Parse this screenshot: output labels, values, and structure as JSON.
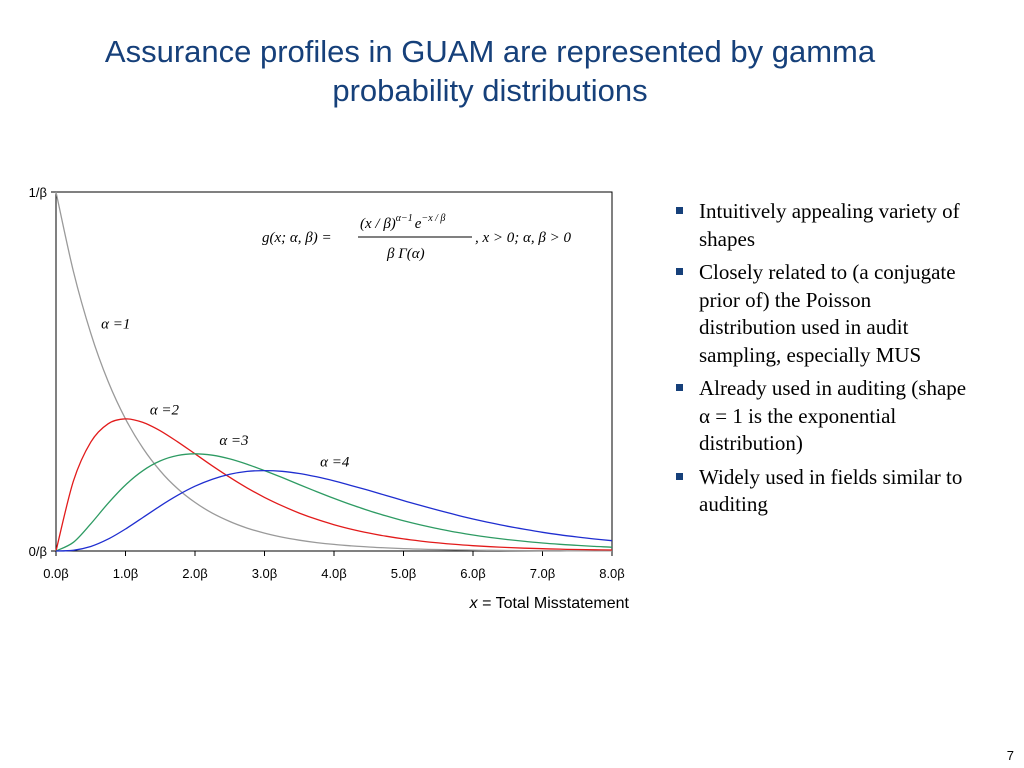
{
  "slide": {
    "title_lines": [
      "Assurance profiles in GUAM are represented by gamma",
      "probability distributions"
    ],
    "bullets": [
      "Intuitively appealing variety of shapes",
      "Closely related to (a conjugate prior of) the Poisson distribution used in audit sampling, especially MUS",
      "Already used in auditing (shape α = 1 is the exponential distribution)",
      "Widely used in fields similar to auditing"
    ],
    "page_number": "7"
  },
  "colors": {
    "title": "#16407a",
    "bullet": "#16407a",
    "alpha1": "#9a9a9a",
    "alpha2": "#e21b1b",
    "alpha3": "#2e9b63",
    "alpha4": "#1f2ed0"
  },
  "chart_data": {
    "type": "line",
    "title": "",
    "xlabel_italic": "x",
    "xlabel_rest": " = Total Misstatement",
    "ylabel": "",
    "xlim": [
      0,
      8
    ],
    "ylim": [
      0,
      1
    ],
    "x_tick_values": [
      0,
      1,
      2,
      3,
      4,
      5,
      6,
      7,
      8
    ],
    "x_tick_labels": [
      "0.0β",
      "1.0β",
      "2.0β",
      "3.0β",
      "4.0β",
      "5.0β",
      "6.0β",
      "7.0β",
      "8.0β"
    ],
    "y_tick_values": [
      0,
      1
    ],
    "y_tick_labels": [
      "0/β",
      "1/β"
    ],
    "grid": false,
    "legend": "none",
    "formula": "g(x; α, β) = (x/β)^(α−1) e^(−x/β) / (β Γ(α)), x > 0; α, β > 0",
    "formula_parts": {
      "lhs": "g(x; α, β) =",
      "numerator_base": "(x / β)",
      "numerator_exp1": "α−1",
      "numerator_e": "e",
      "numerator_exp2": "−x / β",
      "denominator": "β Γ(α)",
      "condition": ", x > 0; α, β > 0"
    },
    "x": [
      0,
      0.25,
      0.5,
      0.75,
      1,
      1.25,
      1.5,
      1.75,
      2,
      2.25,
      2.5,
      2.75,
      3,
      3.25,
      3.5,
      3.75,
      4,
      4.25,
      4.5,
      4.75,
      5,
      5.25,
      5.5,
      5.75,
      6,
      6.25,
      6.5,
      6.75,
      7,
      7.25,
      7.5,
      7.75,
      8
    ],
    "series": [
      {
        "name": "α =1",
        "values": [
          1.0,
          0.7788,
          0.6065,
          0.4724,
          0.3679,
          0.2865,
          0.2231,
          0.1738,
          0.1353,
          0.1054,
          0.0821,
          0.0639,
          0.0498,
          0.0388,
          0.0302,
          0.0235,
          0.0183,
          0.0143,
          0.0111,
          0.0087,
          0.0067,
          0.0052,
          0.0041,
          0.0032,
          0.0025,
          0.0019,
          0.0015,
          0.0012,
          0.0009,
          0.0007,
          0.0006,
          0.0004,
          0.0003
        ]
      },
      {
        "name": "α =2",
        "values": [
          0,
          0.1947,
          0.3033,
          0.3543,
          0.3679,
          0.3581,
          0.3347,
          0.3041,
          0.2707,
          0.2371,
          0.2052,
          0.1758,
          0.1494,
          0.1261,
          0.1057,
          0.0882,
          0.0733,
          0.0606,
          0.05,
          0.0411,
          0.0337,
          0.0276,
          0.0225,
          0.0183,
          0.0149,
          0.0121,
          0.0098,
          0.0079,
          0.0064,
          0.0052,
          0.0042,
          0.0034,
          0.0027
        ]
      },
      {
        "name": "α =3",
        "values": [
          0,
          0.0243,
          0.0758,
          0.1329,
          0.1839,
          0.2238,
          0.251,
          0.2661,
          0.2707,
          0.2668,
          0.2565,
          0.2417,
          0.224,
          0.2049,
          0.185,
          0.1654,
          0.1465,
          0.1287,
          0.1125,
          0.0977,
          0.0842,
          0.0724,
          0.0619,
          0.0527,
          0.0446,
          0.0377,
          0.0318,
          0.0267,
          0.0223,
          0.0187,
          0.0156,
          0.0129,
          0.0107
        ]
      },
      {
        "name": "α =4",
        "values": [
          0,
          0.002,
          0.0126,
          0.0332,
          0.0613,
          0.0932,
          0.1255,
          0.1552,
          0.1804,
          0.2001,
          0.2138,
          0.2216,
          0.224,
          0.222,
          0.2158,
          0.2067,
          0.1954,
          0.1823,
          0.1687,
          0.1546,
          0.1404,
          0.1267,
          0.1135,
          0.101,
          0.0892,
          0.0786,
          0.0689,
          0.0601,
          0.0521,
          0.0452,
          0.039,
          0.0334,
          0.0286
        ]
      }
    ],
    "series_labels_at": [
      {
        "series": 0,
        "x": 0.65,
        "y": 0.62
      },
      {
        "series": 1,
        "x": 1.35,
        "y": 0.38
      },
      {
        "series": 2,
        "x": 2.35,
        "y": 0.295
      },
      {
        "series": 3,
        "x": 3.8,
        "y": 0.235
      }
    ]
  }
}
